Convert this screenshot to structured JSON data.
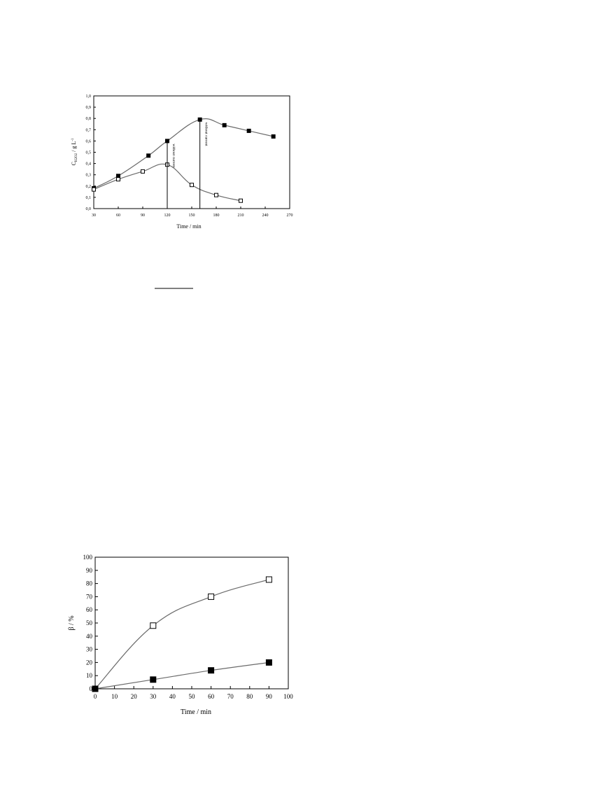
{
  "chart_data": [
    {
      "type": "line",
      "xlabel": "Time / min",
      "ylabel": "C",
      "ylabel_sub": "H2O2",
      "ylabel_unit": " / g L",
      "ylabel_sup": "-1",
      "xlim": [
        30,
        270
      ],
      "ylim": [
        0,
        1.0
      ],
      "xticks": [
        "30",
        "60",
        "90",
        "120",
        "150",
        "180",
        "210",
        "240",
        "270"
      ],
      "yticks": [
        "0,0",
        "0,1",
        "0,2",
        "0,3",
        "0,4",
        "0,5",
        "0,6",
        "0,7",
        "0,8",
        "0,9",
        "1,0"
      ],
      "series": [
        {
          "marker": "filled-square",
          "x": [
            30,
            60,
            97,
            120,
            160,
            190,
            220,
            250
          ],
          "y": [
            0.18,
            0.29,
            0.47,
            0.6,
            0.79,
            0.74,
            0.69,
            0.64
          ]
        },
        {
          "marker": "open-square",
          "x": [
            30,
            60,
            90,
            120,
            150,
            180,
            210
          ],
          "y": [
            0.17,
            0.26,
            0.33,
            0.39,
            0.21,
            0.12,
            0.07
          ]
        }
      ],
      "annotations": [
        {
          "text": "without current",
          "x": 120
        },
        {
          "text": "without current",
          "x": 160
        }
      ]
    },
    {
      "type": "line",
      "xlabel": "Time / min",
      "ylabel": "β / %",
      "xlim": [
        0,
        100
      ],
      "ylim": [
        0,
        100
      ],
      "xticks": [
        "0",
        "10",
        "20",
        "30",
        "40",
        "50",
        "60",
        "70",
        "80",
        "90",
        "100"
      ],
      "yticks": [
        "0",
        "10",
        "20",
        "30",
        "40",
        "50",
        "60",
        "70",
        "80",
        "90",
        "100"
      ],
      "series": [
        {
          "marker": "open-square",
          "x": [
            0,
            30,
            60,
            90
          ],
          "y": [
            0,
            48,
            70,
            83
          ]
        },
        {
          "marker": "filled-square",
          "x": [
            0,
            30,
            60,
            90
          ],
          "y": [
            0,
            7,
            14,
            20
          ]
        }
      ]
    }
  ]
}
